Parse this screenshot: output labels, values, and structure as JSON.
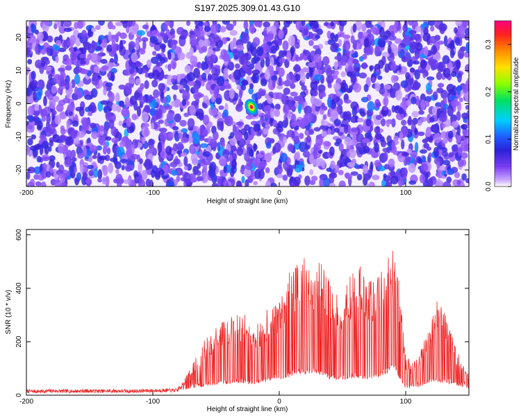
{
  "chart_data": [
    {
      "type": "heatmap",
      "title": "S197.2025.309.01.43.G10",
      "xlabel": "Height of straight line (km)",
      "ylabel": "Frequency (Hz)",
      "xlim": [
        -200,
        150
      ],
      "ylim": [
        -25,
        25
      ],
      "xticks": [
        -200,
        -100,
        0,
        100
      ],
      "yticks": [
        -20,
        -10,
        0,
        10,
        20
      ],
      "colorbar": {
        "label": "Normalized spectral amplitude",
        "range": [
          0.0,
          0.35
        ],
        "ticks": [
          0.0,
          0.1,
          0.2,
          0.3
        ],
        "colormap": [
          "#ffffff",
          "#9a5cff",
          "#3a20d8",
          "#1e5cff",
          "#00d0ff",
          "#00e050",
          "#a0ff00",
          "#ffe000",
          "#ff8000",
          "#ff2020",
          "#ff0080"
        ]
      },
      "hotspot": {
        "x": -22,
        "y": -1,
        "amplitude": 0.32
      },
      "background_amplitude": 0.05,
      "grid": false
    },
    {
      "type": "line",
      "xlabel": "Height of straight line (km)",
      "ylabel": "SNR (10 * v/v)",
      "xlim": [
        -200,
        150
      ],
      "ylim": [
        0,
        620
      ],
      "xticks": [
        -200,
        -100,
        0,
        100
      ],
      "yticks": [
        0,
        200,
        400,
        600
      ],
      "color": "#ee2222",
      "grid": false,
      "x": [
        -200,
        -190,
        -180,
        -170,
        -160,
        -150,
        -140,
        -130,
        -120,
        -110,
        -100,
        -90,
        -80,
        -75,
        -70,
        -65,
        -60,
        -55,
        -50,
        -45,
        -40,
        -35,
        -30,
        -25,
        -20,
        -15,
        -10,
        -5,
        0,
        5,
        10,
        15,
        20,
        25,
        30,
        35,
        40,
        45,
        50,
        55,
        60,
        65,
        70,
        75,
        80,
        85,
        90,
        95,
        100,
        105,
        110,
        115,
        120,
        125,
        130,
        135,
        140,
        145,
        150
      ],
      "y": [
        15,
        14,
        16,
        15,
        15,
        16,
        15,
        16,
        15,
        16,
        17,
        18,
        20,
        60,
        110,
        150,
        200,
        230,
        260,
        280,
        300,
        320,
        330,
        280,
        250,
        290,
        320,
        330,
        350,
        440,
        480,
        510,
        520,
        480,
        500,
        520,
        430,
        380,
        350,
        440,
        480,
        490,
        420,
        450,
        470,
        500,
        560,
        430,
        150,
        120,
        140,
        220,
        290,
        360,
        320,
        250,
        180,
        120,
        80
      ],
      "floor": [
        15,
        14,
        16,
        15,
        15,
        16,
        15,
        16,
        15,
        16,
        17,
        18,
        18,
        20,
        25,
        30,
        30,
        35,
        35,
        40,
        40,
        45,
        45,
        40,
        40,
        45,
        50,
        55,
        60,
        60,
        70,
        80,
        75,
        80,
        80,
        70,
        60,
        55,
        55,
        60,
        65,
        60,
        55,
        60,
        70,
        80,
        110,
        60,
        25,
        25,
        30,
        40,
        50,
        50,
        45,
        40,
        35,
        30,
        25
      ]
    }
  ]
}
